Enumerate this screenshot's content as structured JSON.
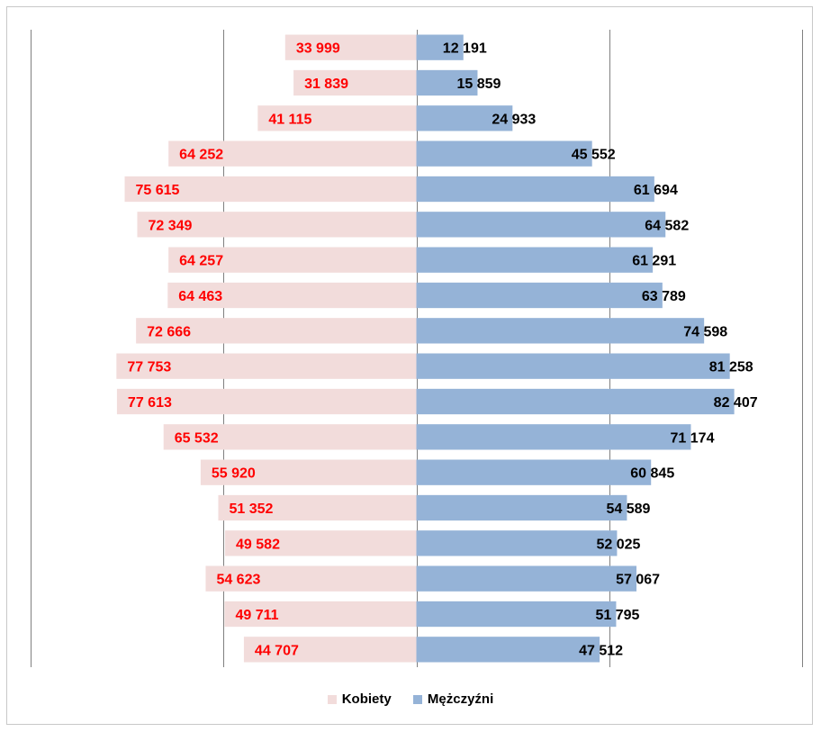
{
  "chart_data": {
    "type": "bar",
    "orientation": "horizontal",
    "layout": "population-pyramid",
    "xlim": [
      -100000,
      100000
    ],
    "grid": true,
    "legend_position": "bottom",
    "colors": {
      "kobiety": "#f2dcdb",
      "mezczyzni": "#95b3d7",
      "kobiety_label": "#ff0000",
      "mezczyzni_label": "#000000"
    },
    "series": [
      {
        "name": "Kobiety",
        "values": [
          33999,
          31839,
          41115,
          64252,
          75615,
          72349,
          64257,
          64463,
          72666,
          77753,
          77613,
          65532,
          55920,
          51352,
          49582,
          54623,
          49711,
          44707
        ],
        "labels": [
          "33 999",
          "31 839",
          "41 115",
          "64 252",
          "75 615",
          "72 349",
          "64 257",
          "64 463",
          "72 666",
          "77 753",
          "77 613",
          "65 532",
          "55 920",
          "51 352",
          "49 582",
          "54 623",
          "49 711",
          "44 707"
        ]
      },
      {
        "name": "Mężczyźni",
        "values": [
          12191,
          15859,
          24933,
          45552,
          61694,
          64582,
          61291,
          63789,
          74598,
          81258,
          82407,
          71174,
          60845,
          54589,
          52025,
          57067,
          51795,
          47512
        ],
        "labels": [
          "12 191",
          "15 859",
          "24 933",
          "45 552",
          "61 694",
          "64 582",
          "61 291",
          "63 789",
          "74 598",
          "81 258",
          "82 407",
          "71 174",
          "60 845",
          "54 589",
          "52 025",
          "57 067",
          "51 795",
          "47 512"
        ]
      }
    ]
  }
}
